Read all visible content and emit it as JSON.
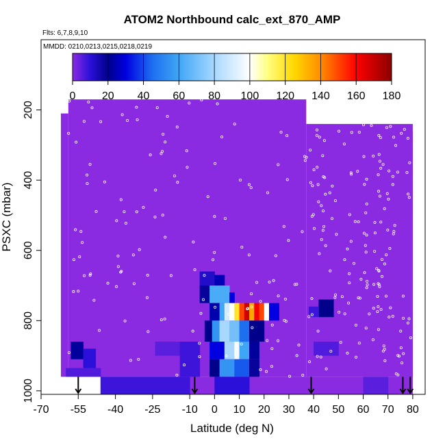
{
  "chart_data": {
    "type": "heatmap",
    "title": "ATOM2 Northbound calc_ext_870_AMP",
    "subtitle_flights": "Flts: 6,7,8,9,10",
    "subtitle_dates": "MMDD: 0210,0213,0215,0218,0219",
    "xlabel": "Latitude (deg N)",
    "ylabel": "PSXC (mbar)",
    "xlim": [
      -70,
      85
    ],
    "ylim": [
      1010,
      0
    ],
    "x_ticks": [
      -70,
      -55,
      -40,
      -25,
      -10,
      0,
      10,
      20,
      30,
      40,
      50,
      60,
      70,
      80
    ],
    "x_tick_labels": [
      "-70",
      "-55",
      "-40",
      "-25",
      "-10",
      "0",
      "10",
      "20",
      "30",
      "40",
      "50",
      "60",
      "70",
      "80"
    ],
    "y_ticks": [
      200,
      400,
      600,
      800,
      1000
    ],
    "y_tick_labels": [
      "200",
      "400",
      "600",
      "800",
      "1000"
    ],
    "colorbar": {
      "ticks": [
        0,
        20,
        40,
        60,
        80,
        100,
        120,
        140,
        160,
        180
      ],
      "tick_labels": [
        "0",
        "20",
        "40",
        "60",
        "80",
        "100",
        "120",
        "140",
        "160",
        "180"
      ],
      "range": [
        0,
        180
      ],
      "stops": [
        {
          "v": 0,
          "c": "#8a2be2"
        },
        {
          "v": 10,
          "c": "#2a10d8"
        },
        {
          "v": 20,
          "c": "#00008b"
        },
        {
          "v": 30,
          "c": "#0000e0"
        },
        {
          "v": 45,
          "c": "#1e6ff0"
        },
        {
          "v": 60,
          "c": "#3fa6f5"
        },
        {
          "v": 80,
          "c": "#a8d8ff"
        },
        {
          "v": 100,
          "c": "#ffffff"
        },
        {
          "v": 110,
          "c": "#ffff80"
        },
        {
          "v": 125,
          "c": "#ffd700"
        },
        {
          "v": 140,
          "c": "#ff8c00"
        },
        {
          "v": 160,
          "c": "#ff0000"
        },
        {
          "v": 180,
          "c": "#8b0000"
        }
      ]
    },
    "background_value": 0,
    "background_color": "#8a2be2",
    "coverage": [
      {
        "lat": [
          -59,
          37
        ],
        "p": [
          170,
          960
        ]
      },
      {
        "lat": [
          37,
          80
        ],
        "p": [
          240,
          960
        ]
      },
      {
        "lat": [
          -62,
          -59
        ],
        "p": [
          210,
          960
        ]
      },
      {
        "lat": [
          74,
          80
        ],
        "p": [
          262,
          960
        ]
      },
      {
        "lat": [
          -46,
          80
        ],
        "p": [
          960,
          1010
        ]
      }
    ],
    "cells": [
      {
        "lat": [
          -58,
          -53
        ],
        "p": [
          860,
          910
        ],
        "v": 22
      },
      {
        "lat": [
          -53,
          -48
        ],
        "p": [
          880,
          935
        ],
        "v": 10
      },
      {
        "lat": [
          -60,
          -46
        ],
        "p": [
          935,
          960
        ],
        "v": 6
      },
      {
        "lat": [
          -46,
          -10
        ],
        "p": [
          960,
          1010
        ],
        "v": 8
      },
      {
        "lat": [
          -24,
          -14
        ],
        "p": [
          860,
          900
        ],
        "v": 5
      },
      {
        "lat": [
          -14,
          -6
        ],
        "p": [
          860,
          960
        ],
        "v": 8
      },
      {
        "lat": [
          -6,
          0
        ],
        "p": [
          660,
          700
        ],
        "v": 12
      },
      {
        "lat": [
          0,
          4
        ],
        "p": [
          670,
          700
        ],
        "v": 25
      },
      {
        "lat": [
          -6,
          -2
        ],
        "p": [
          700,
          750
        ],
        "v": 18
      },
      {
        "lat": [
          -2,
          6
        ],
        "p": [
          700,
          750
        ],
        "v": 62
      },
      {
        "lat": [
          6,
          8
        ],
        "p": [
          720,
          750
        ],
        "v": 30
      },
      {
        "lat": [
          -2,
          2
        ],
        "p": [
          750,
          800
        ],
        "v": 24
      },
      {
        "lat": [
          2,
          4
        ],
        "p": [
          750,
          800
        ],
        "v": 60
      },
      {
        "lat": [
          4,
          6
        ],
        "p": [
          750,
          800
        ],
        "v": 90
      },
      {
        "lat": [
          6,
          8
        ],
        "p": [
          750,
          800
        ],
        "v": 100
      },
      {
        "lat": [
          8,
          10
        ],
        "p": [
          750,
          800
        ],
        "v": 120
      },
      {
        "lat": [
          10,
          12
        ],
        "p": [
          750,
          800
        ],
        "v": 150
      },
      {
        "lat": [
          12,
          14
        ],
        "p": [
          750,
          800
        ],
        "v": 168
      },
      {
        "lat": [
          14,
          16
        ],
        "p": [
          750,
          800
        ],
        "v": 135
      },
      {
        "lat": [
          16,
          18
        ],
        "p": [
          750,
          800
        ],
        "v": 162
      },
      {
        "lat": [
          18,
          20
        ],
        "p": [
          750,
          800
        ],
        "v": 150
      },
      {
        "lat": [
          20,
          22
        ],
        "p": [
          750,
          800
        ],
        "v": 100
      },
      {
        "lat": [
          22,
          26
        ],
        "p": [
          750,
          800
        ],
        "v": 30
      },
      {
        "lat": [
          -4,
          -1
        ],
        "p": [
          800,
          860
        ],
        "v": 20
      },
      {
        "lat": [
          -1,
          2
        ],
        "p": [
          800,
          860
        ],
        "v": 55
      },
      {
        "lat": [
          2,
          6
        ],
        "p": [
          800,
          860
        ],
        "v": 80
      },
      {
        "lat": [
          6,
          10
        ],
        "p": [
          800,
          860
        ],
        "v": 70
      },
      {
        "lat": [
          10,
          14
        ],
        "p": [
          800,
          860
        ],
        "v": 45
      },
      {
        "lat": [
          14,
          20
        ],
        "p": [
          800,
          860
        ],
        "v": 20
      },
      {
        "lat": [
          -2,
          4
        ],
        "p": [
          860,
          910
        ],
        "v": 30
      },
      {
        "lat": [
          4,
          8
        ],
        "p": [
          860,
          910
        ],
        "v": 80
      },
      {
        "lat": [
          8,
          10
        ],
        "p": [
          860,
          910
        ],
        "v": 98
      },
      {
        "lat": [
          10,
          14
        ],
        "p": [
          860,
          910
        ],
        "v": 60
      },
      {
        "lat": [
          14,
          18
        ],
        "p": [
          860,
          910
        ],
        "v": 22
      },
      {
        "lat": [
          -2,
          2
        ],
        "p": [
          910,
          960
        ],
        "v": 20
      },
      {
        "lat": [
          2,
          8
        ],
        "p": [
          910,
          960
        ],
        "v": 55
      },
      {
        "lat": [
          8,
          14
        ],
        "p": [
          910,
          960
        ],
        "v": 42
      },
      {
        "lat": [
          14,
          18
        ],
        "p": [
          910,
          960
        ],
        "v": 18
      },
      {
        "lat": [
          0,
          14
        ],
        "p": [
          960,
          1010
        ],
        "v": 10
      },
      {
        "lat": [
          42,
          48
        ],
        "p": [
          740,
          790
        ],
        "v": 20
      },
      {
        "lat": [
          38,
          42
        ],
        "p": [
          760,
          790
        ],
        "v": 8
      },
      {
        "lat": [
          40,
          50
        ],
        "p": [
          860,
          900
        ],
        "v": 6
      },
      {
        "lat": [
          60,
          70
        ],
        "p": [
          960,
          1010
        ],
        "v": 5
      }
    ],
    "arrows_lat": [
      -55,
      -8,
      39,
      76,
      79
    ]
  }
}
